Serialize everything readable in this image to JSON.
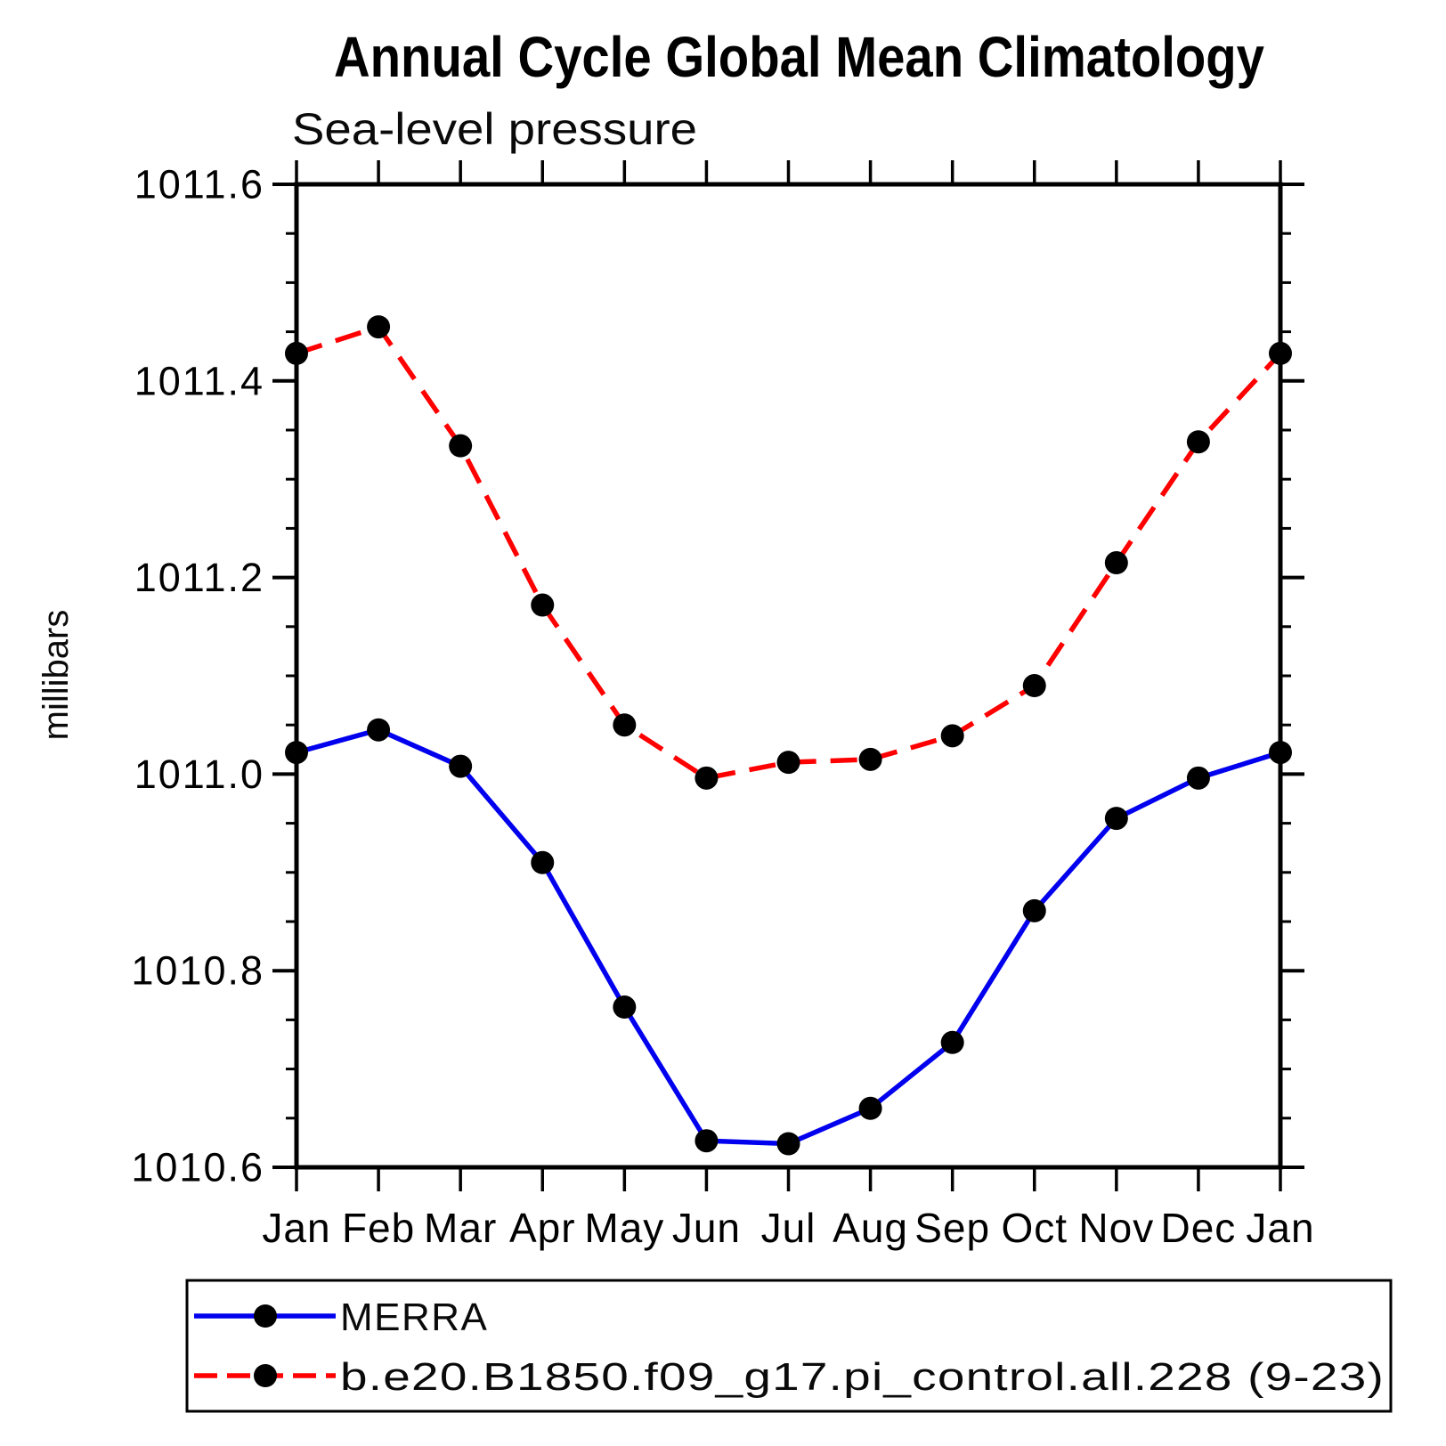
{
  "chart": {
    "title": "Annual Cycle Global Mean Climatology",
    "subtitle": "Sea-level pressure",
    "ylabel": "millibars"
  },
  "chart_data": {
    "type": "line",
    "title": "Annual Cycle Global Mean Climatology",
    "subtitle": "Sea-level pressure",
    "ylabel": "millibars",
    "xlabel": "",
    "grid": false,
    "legend_position": "bottom",
    "x_categories": [
      "Jan",
      "Feb",
      "Mar",
      "Apr",
      "May",
      "Jun",
      "Jul",
      "Aug",
      "Sep",
      "Oct",
      "Nov",
      "Dec",
      "Jan"
    ],
    "ylim": [
      1010.6,
      1011.6
    ],
    "y_major_tick_step": 0.2,
    "y_minor_tick_step": 0.05,
    "y_tick_labels": [
      "1010.6",
      "1010.8",
      "1011.0",
      "1011.2",
      "1011.4",
      "1011.6"
    ],
    "marker_color": "#000000",
    "series": [
      {
        "name": "MERRA",
        "color": "#0000ee",
        "style": "solid",
        "marker": "circle",
        "values": [
          1011.022,
          1011.045,
          1011.008,
          1010.91,
          1010.763,
          1010.627,
          1010.624,
          1010.66,
          1010.727,
          1010.861,
          1010.955,
          1010.996,
          1011.022
        ]
      },
      {
        "name": "b.e20.B1850.f09_g17.pi_control.all.228 (9-23)",
        "color": "#ff0000",
        "style": "dashed",
        "marker": "circle",
        "values": [
          1011.428,
          1011.455,
          1011.334,
          1011.172,
          1011.05,
          1010.996,
          1011.012,
          1011.015,
          1011.039,
          1011.09,
          1011.215,
          1011.338,
          1011.428
        ]
      }
    ]
  }
}
